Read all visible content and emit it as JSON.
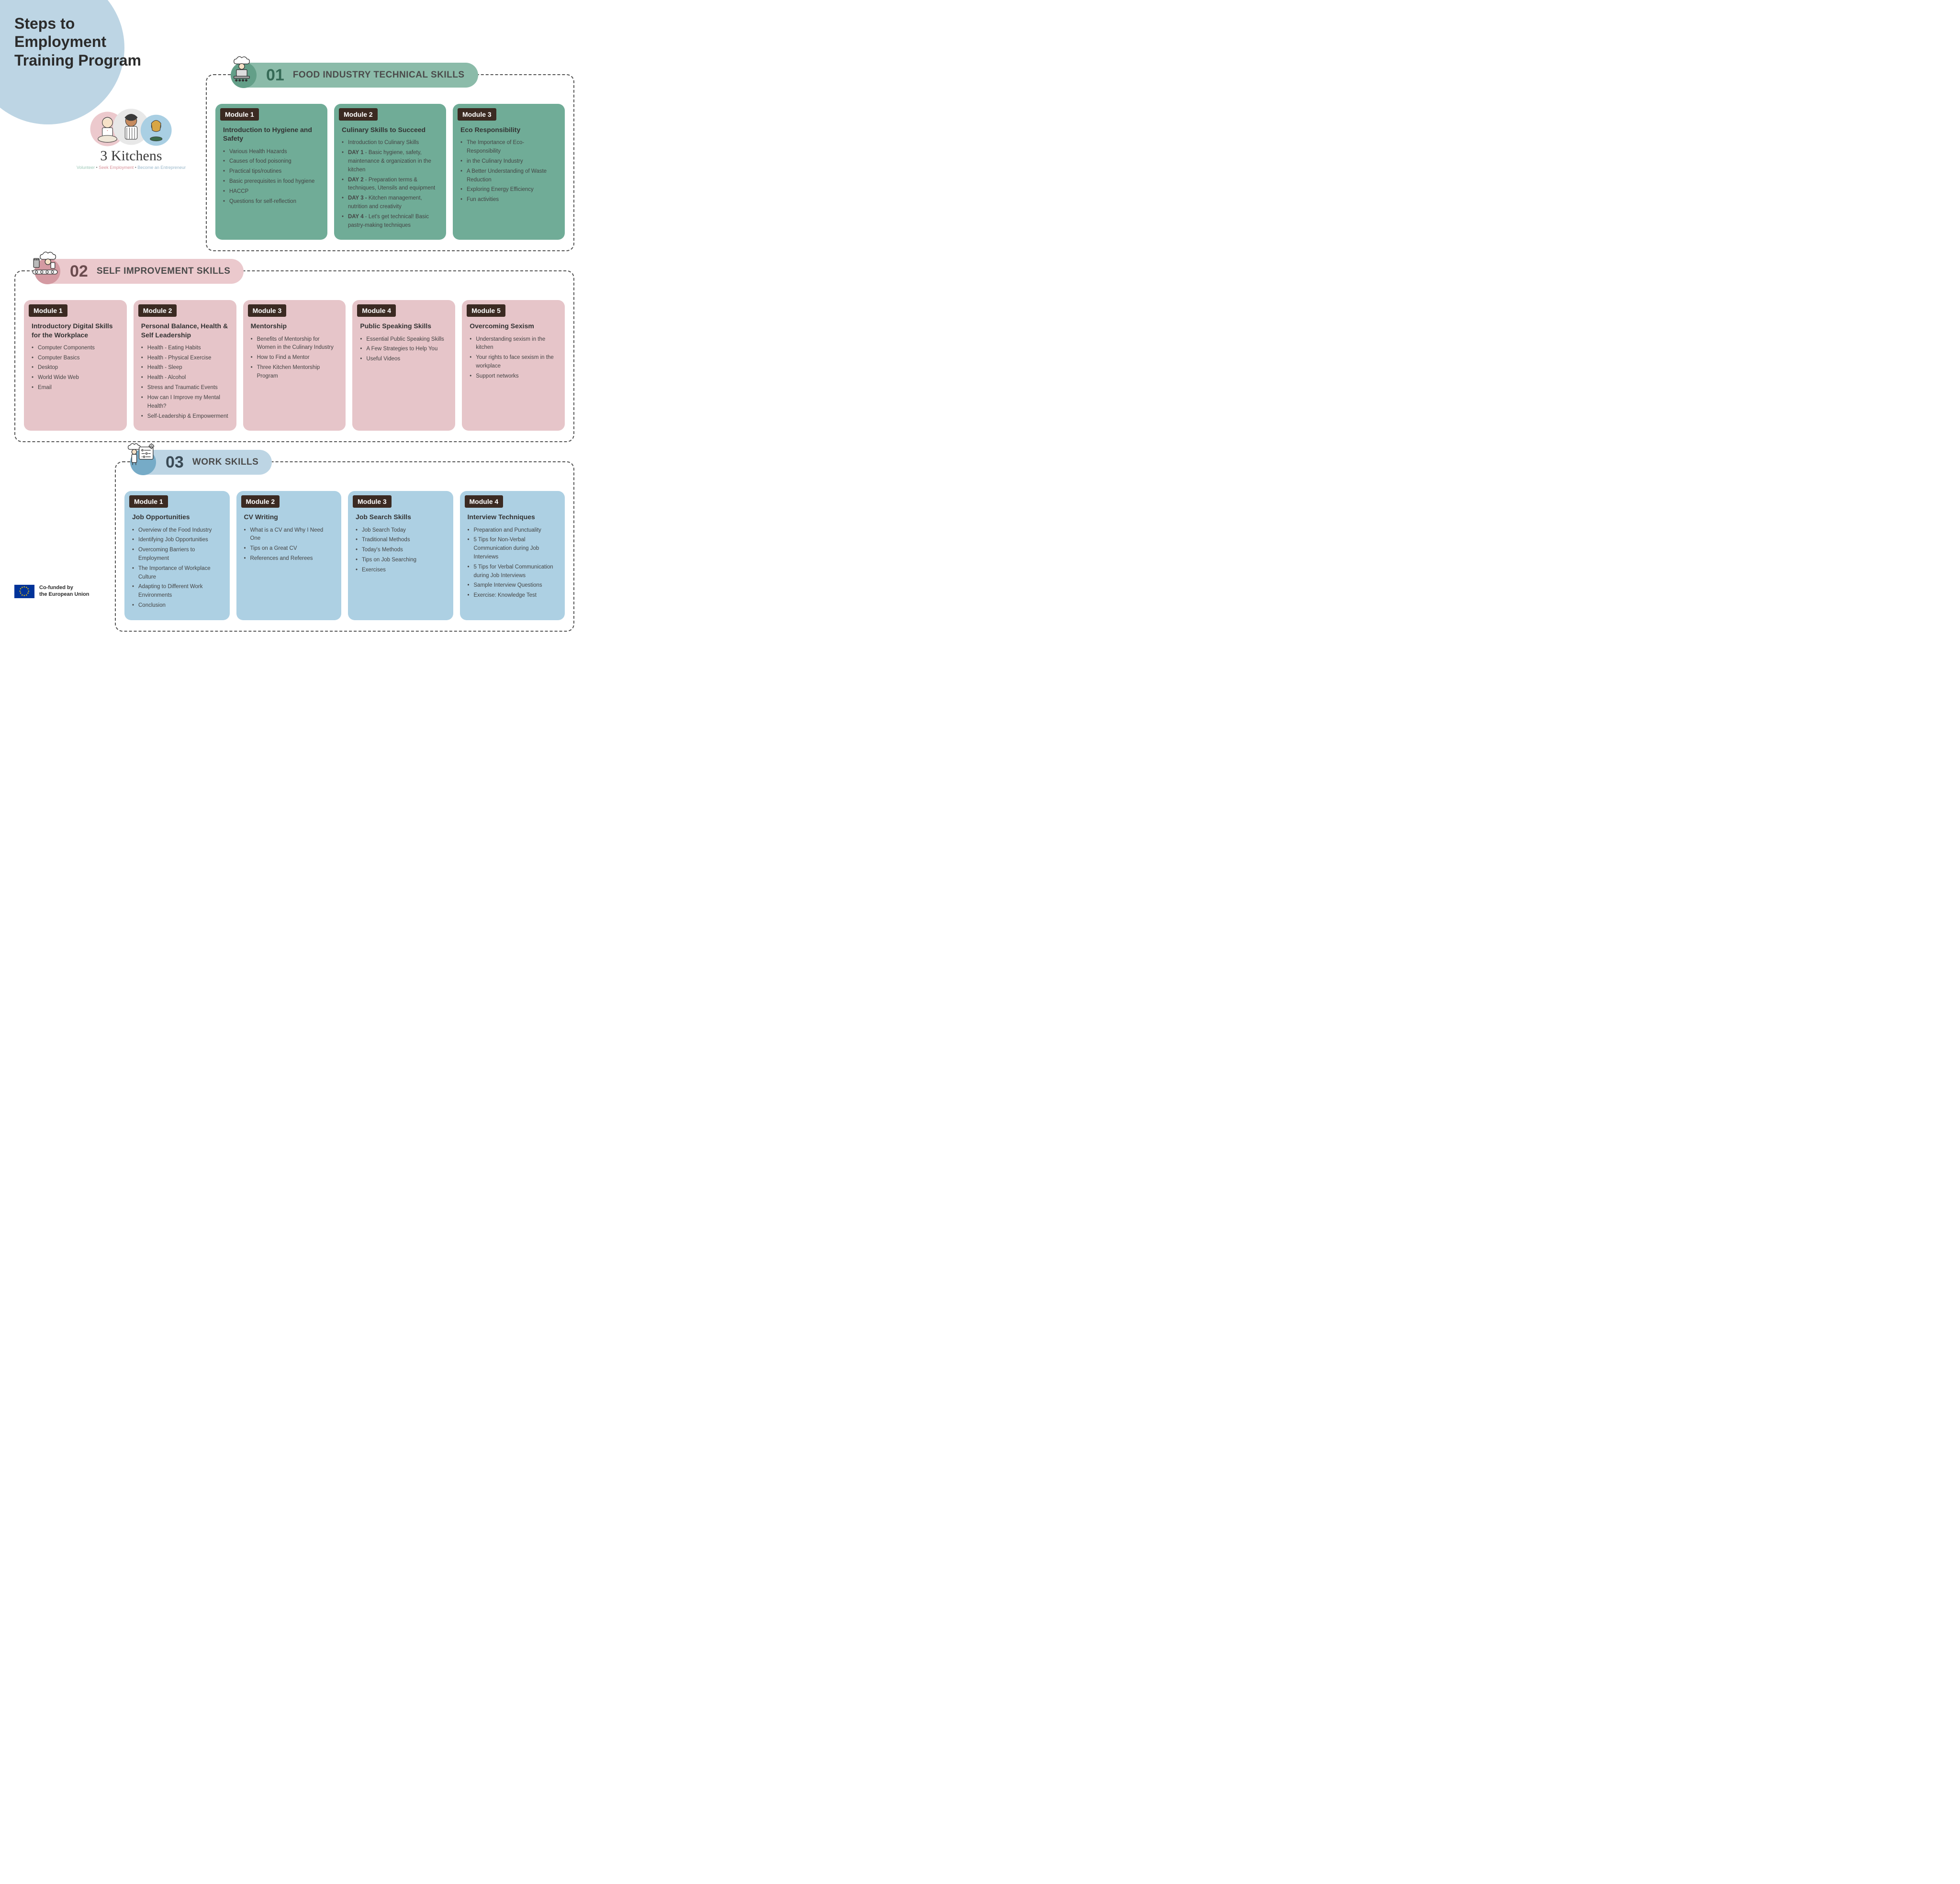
{
  "page": {
    "title": "Steps to Employment Training Program",
    "background": "#ffffff",
    "title_circle_color": "#bdd5e4",
    "title_color": "#2b2b2b",
    "title_fontsize": 32
  },
  "logo": {
    "name": "3 Kitchens",
    "tagline_volunteer": "Volunteer",
    "tagline_seek": "Seek Employment",
    "tagline_entrepreneur": "Become an Entrepreneur",
    "sep": " • "
  },
  "eu": {
    "line1": "Co-funded by",
    "line2": "the European Union",
    "flag_bg": "#003399",
    "star_color": "#ffcc00"
  },
  "section_label": "Module",
  "sections": [
    {
      "num": "01",
      "title": "FOOD INDUSTRY TECHNICAL SKILLS",
      "header_bg": "#8bbba9",
      "num_color": "#356a56",
      "icon_circle": "#639f88",
      "module_bg": "#70ac97",
      "badge_bg": "#3b2a22",
      "modules": [
        {
          "n": "1",
          "title": "Introduction to Hygiene and Safety",
          "items": [
            "Various Health Hazards",
            "Causes of food poisoning",
            "Practical tips/routines",
            "Basic prerequisites in food hygiene",
            "HACCP",
            "Questions for self-reflection"
          ]
        },
        {
          "n": "2",
          "title": "Culinary Skills to Succeed",
          "items": [
            "Introduction to  Culinary Skills",
            "<b>DAY 1</b> - Basic hygiene, safety, maintenance & organization in the kitchen",
            "<b>DAY 2</b> - Preparation terms & techniques, Utensils and equipment",
            "<b>DAY 3 -</b> Kitchen management, nutrition and creativity",
            "<b>DAY 4</b> -  Let's get technical! Basic pastry-making techniques"
          ]
        },
        {
          "n": "3",
          "title": "Eco Responsibility",
          "items": [
            "The Importance of Eco-Responsibility",
            "in the Culinary  Industry",
            "A Better Understanding of Waste Reduction",
            "Exploring Energy Efficiency",
            "Fun activities"
          ]
        }
      ]
    },
    {
      "num": "02",
      "title": "SELF IMPROVEMENT SKILLS",
      "header_bg": "#ebc9cd",
      "num_color": "#6a4b4e",
      "icon_circle": "#d49aa2",
      "module_bg": "#e6c5c9",
      "badge_bg": "#3b2a22",
      "modules": [
        {
          "n": "1",
          "title": "Introductory Digital Skills for the Workplace",
          "items": [
            "Computer Components",
            "Computer Basics",
            "Desktop",
            "World Wide Web",
            "Email"
          ]
        },
        {
          "n": "2",
          "title": "Personal Balance, Health & Self Leadership",
          "items": [
            "Health - Eating Habits",
            "Health - Physical Exercise",
            "Health - Sleep",
            "Health - Alcohol",
            "Stress and Traumatic Events",
            "How can I Improve my Mental Health?",
            "Self-Leadership & Empowerment"
          ]
        },
        {
          "n": "3",
          "title": "Mentorship",
          "items": [
            "Benefits of Mentorship for Women in the Culinary Industry",
            "How to Find a Mentor",
            "Three Kitchen Mentorship Program"
          ]
        },
        {
          "n": "4",
          "title": "Public Speaking Skills",
          "items": [
            "Essential Public Speaking Skills",
            "A Few Strategies to Help You",
            "Useful Videos"
          ]
        },
        {
          "n": "5",
          "title": "Overcoming Sexism",
          "items": [
            "Understanding sexism in the kitchen",
            "Your rights to face sexism in the workplace",
            "Support networks"
          ]
        }
      ]
    },
    {
      "num": "03",
      "title": "WORK SKILLS",
      "header_bg": "#bdd5e4",
      "num_color": "#3a4a55",
      "icon_circle": "#76abc7",
      "module_bg": "#add0e3",
      "badge_bg": "#3b2a22",
      "modules": [
        {
          "n": "1",
          "title": "Job Opportunities",
          "items": [
            "Overview of the Food Industry",
            "Identifying Job Opportunities",
            "Overcoming Barriers to Employment",
            "The Importance of Workplace Culture",
            "Adapting to Different Work Environments",
            "Conclusion"
          ]
        },
        {
          "n": "2",
          "title": "CV Writing",
          "items": [
            "What is a CV and Why I Need One",
            "Tips on a Great CV",
            "References and Referees"
          ]
        },
        {
          "n": "3",
          "title": "Job Search Skills",
          "items": [
            "Job Search Today",
            "Traditional Methods",
            "Today's Methods",
            "Tips on Job Searching",
            "Exercises"
          ]
        },
        {
          "n": "4",
          "title": "Interview Techniques",
          "items": [
            "Preparation and Punctuality",
            "5 Tips for Non-Verbal Communication during Job Interviews",
            "5 Tips for Verbal Communication during Job Interviews",
            "Sample Interview Questions",
            "Exercise:  Knowledge Test"
          ]
        }
      ]
    }
  ]
}
